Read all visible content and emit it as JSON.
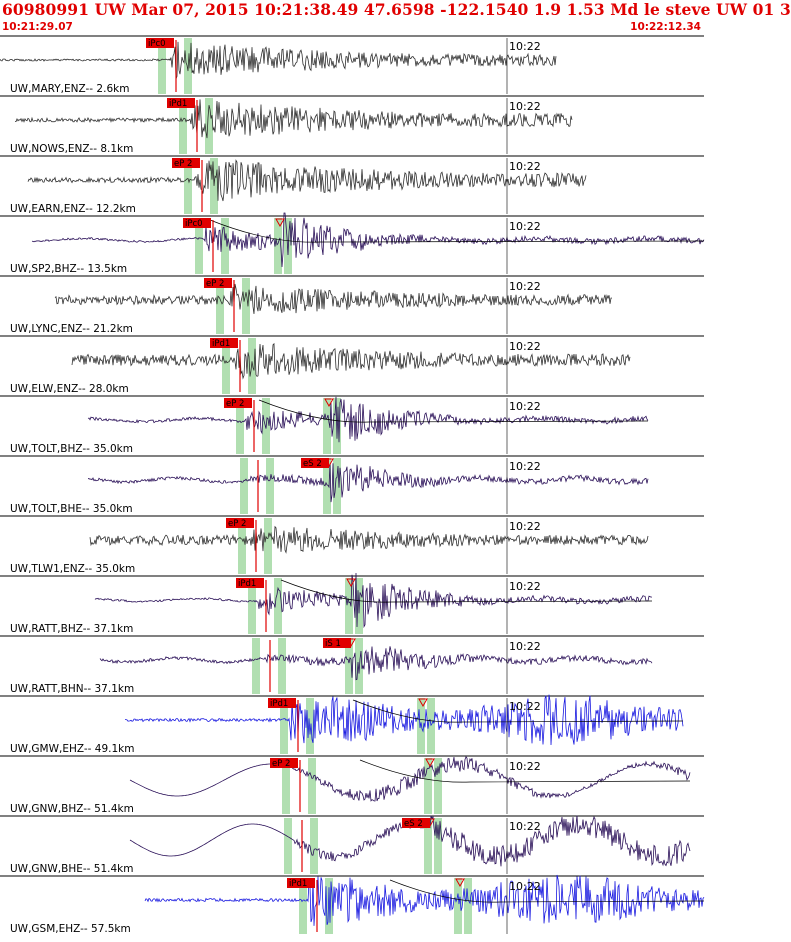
{
  "header": {
    "title": "60980991 UW Mar 07, 2015 10:21:38.49   47.6598 -122.1540  1.9 1.53 Md le steve UW 01   3",
    "start_time": "10:21:29.07",
    "end_time": "10:22:12.34"
  },
  "colors": {
    "accent": "#e00000",
    "trace_gray": "#303030",
    "trace_navy": "#2a1058",
    "trace_blue": "#1a1ae0",
    "pick_window": "#a8dca8"
  },
  "channels": [
    {
      "label": "UW,MARY,ENZ-- 2.6km",
      "time_mark": "10:22",
      "pick": "iPc0"
    },
    {
      "label": "UW,NOWS,ENZ-- 8.1km",
      "time_mark": "10:22",
      "pick": "iPd1"
    },
    {
      "label": "UW,EARN,ENZ-- 12.2km",
      "time_mark": "10:22",
      "pick": "eP 2"
    },
    {
      "label": "UW,SP2,BHZ-- 13.5km",
      "time_mark": "10:22",
      "pick": "iPc0"
    },
    {
      "label": "UW,LYNC,ENZ-- 21.2km",
      "time_mark": "10:22",
      "pick": "eP 2"
    },
    {
      "label": "UW,ELW,ENZ-- 28.0km",
      "time_mark": "10:22",
      "pick": "iPd1"
    },
    {
      "label": "UW,TOLT,BHZ-- 35.0km",
      "time_mark": "10:22",
      "pick": "eP 2"
    },
    {
      "label": "UW,TOLT,BHE-- 35.0km",
      "time_mark": "10:22",
      "pick": "eS 2"
    },
    {
      "label": "UW,TLW1,ENZ-- 35.0km",
      "time_mark": "10:22",
      "pick": "eP 2"
    },
    {
      "label": "UW,RATT,BHZ-- 37.1km",
      "time_mark": "10:22",
      "pick": "iPd1"
    },
    {
      "label": "UW,RATT,BHN-- 37.1km",
      "time_mark": "10:22",
      "pick": "iS 1"
    },
    {
      "label": "UW,GMW,EHZ-- 49.1km",
      "time_mark": "10:22",
      "pick": "iPd1"
    },
    {
      "label": "UW,GNW,BHZ-- 51.4km",
      "time_mark": "10:22",
      "pick": "eP 2"
    },
    {
      "label": "UW,GNW,BHE-- 51.4km",
      "time_mark": "10:22",
      "pick": "eS 2"
    },
    {
      "label": "UW,GSM,EHZ-- 57.5km",
      "time_mark": "10:22",
      "pick": "iPd1"
    }
  ]
}
